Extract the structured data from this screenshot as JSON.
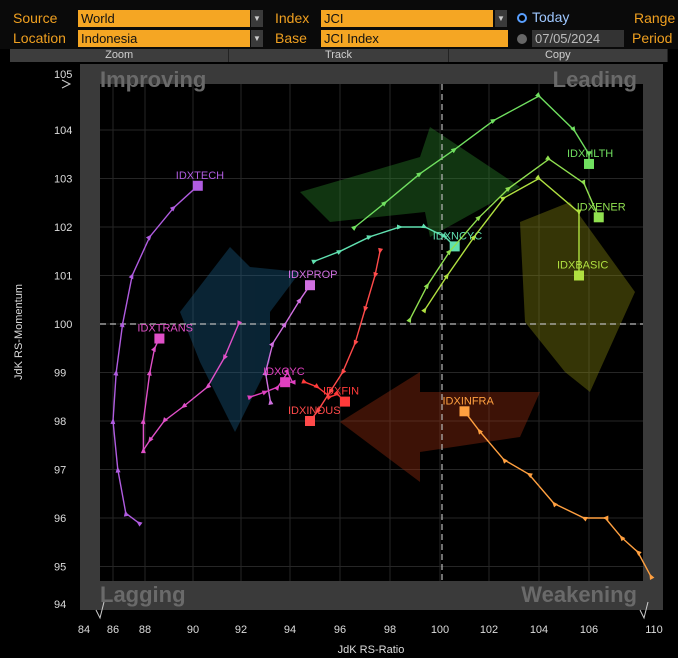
{
  "toolbar": {
    "source_label": "Source",
    "source_value": "World",
    "location_label": "Location",
    "location_value": "Indonesia",
    "index_label": "Index",
    "index_value": "JCI",
    "base_label": "Base",
    "base_value": "JCI Index",
    "today_label": "Today",
    "date_value": "07/05/2024",
    "range_label": "Range",
    "period_label": "Period"
  },
  "tabs": [
    {
      "label": "Zoom"
    },
    {
      "label": "Track"
    },
    {
      "label": "Copy"
    }
  ],
  "quadrants": {
    "improving": "Improving",
    "leading": "Leading",
    "lagging": "Lagging",
    "weakening": "Weakening"
  },
  "colors": {
    "accent_orange": "#f5a623",
    "grid": "#3a3a3a",
    "IDXTECH": "#b05ce0",
    "IDXTRANS": "#e050c8",
    "IDXPROP": "#d070e0",
    "IDXCYC": "#e040c0",
    "IDXFIN": "#ff3a3a",
    "IDXINDUS": "#ff4a4a",
    "IDXNCYC": "#60e0b0",
    "IDXHLTH": "#70e060",
    "IDXENER": "#90e050",
    "IDXBASIC": "#b0e040",
    "IDXINFRA": "#ffa040"
  },
  "chart_data": {
    "type": "scatter",
    "xlabel": "JdK RS-Ratio",
    "ylabel": "JdK RS-Momentum",
    "xlim": [
      84,
      110
    ],
    "ylim": [
      94,
      105
    ],
    "xticks": [
      84,
      86,
      88,
      90,
      92,
      94,
      96,
      98,
      100,
      102,
      104,
      106,
      110
    ],
    "yticks": [
      94,
      95,
      96,
      97,
      98,
      99,
      100,
      101,
      102,
      103,
      104,
      105
    ],
    "center": [
      100,
      100
    ],
    "grid": true,
    "series": [
      {
        "name": "IDXTECH",
        "points": [
          [
            87.6,
            95.9
          ],
          [
            86.8,
            96.1
          ],
          [
            86.3,
            97.0
          ],
          [
            86.0,
            98.0
          ],
          [
            86.2,
            99.0
          ],
          [
            86.6,
            100.0
          ],
          [
            87.2,
            101.0
          ],
          [
            88.2,
            101.8
          ],
          [
            89.2,
            102.4
          ],
          [
            90.2,
            102.85
          ]
        ]
      },
      {
        "name": "IDXTRANS",
        "points": [
          [
            91.9,
            100.0
          ],
          [
            91.3,
            99.3
          ],
          [
            90.6,
            98.7
          ],
          [
            89.6,
            98.3
          ],
          [
            88.8,
            98.0
          ],
          [
            88.2,
            97.6
          ],
          [
            87.9,
            97.4
          ],
          [
            87.9,
            98.0
          ],
          [
            88.2,
            99.0
          ],
          [
            88.4,
            99.5
          ],
          [
            88.6,
            99.7
          ]
        ]
      },
      {
        "name": "IDXPROP",
        "points": [
          [
            93.2,
            98.4
          ],
          [
            93.0,
            99.0
          ],
          [
            93.3,
            99.6
          ],
          [
            93.8,
            100.0
          ],
          [
            94.4,
            100.5
          ],
          [
            94.8,
            100.8
          ]
        ]
      },
      {
        "name": "IDXCYC",
        "points": [
          [
            92.4,
            98.5
          ],
          [
            93.0,
            98.6
          ],
          [
            93.5,
            98.7
          ],
          [
            93.9,
            99.0
          ],
          [
            94.1,
            98.8
          ],
          [
            93.8,
            98.8
          ]
        ]
      },
      {
        "name": "IDXFIN",
        "points": [
          [
            94.6,
            98.8
          ],
          [
            95.1,
            98.7
          ],
          [
            95.6,
            98.5
          ],
          [
            95.9,
            98.55
          ],
          [
            96.2,
            98.4
          ]
        ]
      },
      {
        "name": "IDXINDUS",
        "points": [
          [
            97.6,
            101.5
          ],
          [
            97.4,
            101.0
          ],
          [
            97.0,
            100.3
          ],
          [
            96.6,
            99.6
          ],
          [
            96.1,
            99.0
          ],
          [
            95.6,
            98.6
          ],
          [
            95.1,
            98.2
          ],
          [
            94.8,
            98.0
          ]
        ]
      },
      {
        "name": "IDXNCYC",
        "points": [
          [
            95.0,
            101.3
          ],
          [
            96.0,
            101.5
          ],
          [
            97.2,
            101.8
          ],
          [
            98.4,
            102.0
          ],
          [
            99.4,
            102.0
          ],
          [
            100.2,
            101.8
          ],
          [
            100.6,
            101.6
          ]
        ]
      },
      {
        "name": "IDXHLTH",
        "points": [
          [
            96.6,
            102.0
          ],
          [
            97.8,
            102.5
          ],
          [
            99.2,
            103.1
          ],
          [
            100.6,
            103.6
          ],
          [
            102.2,
            104.2
          ],
          [
            104.0,
            104.7
          ],
          [
            105.4,
            104.0
          ],
          [
            106.0,
            103.5
          ],
          [
            106.0,
            103.3
          ]
        ]
      },
      {
        "name": "IDXENER",
        "points": [
          [
            98.8,
            100.1
          ],
          [
            99.5,
            100.8
          ],
          [
            100.4,
            101.5
          ],
          [
            101.6,
            102.2
          ],
          [
            102.8,
            102.8
          ],
          [
            104.4,
            103.4
          ],
          [
            105.8,
            102.9
          ],
          [
            106.6,
            102.2
          ]
        ]
      },
      {
        "name": "IDXBASIC",
        "points": [
          [
            99.4,
            100.3
          ],
          [
            100.3,
            101.0
          ],
          [
            101.4,
            101.8
          ],
          [
            102.6,
            102.6
          ],
          [
            104.0,
            103.0
          ],
          [
            105.6,
            102.3
          ],
          [
            105.6,
            101.0
          ]
        ]
      },
      {
        "name": "IDXINFRA",
        "points": [
          [
            109.8,
            94.8
          ],
          [
            109.0,
            95.3
          ],
          [
            108.0,
            95.6
          ],
          [
            107.0,
            96.0
          ],
          [
            105.8,
            96.0
          ],
          [
            104.6,
            96.3
          ],
          [
            103.6,
            96.9
          ],
          [
            102.6,
            97.2
          ],
          [
            101.6,
            97.8
          ],
          [
            101.0,
            98.2
          ]
        ]
      }
    ]
  }
}
